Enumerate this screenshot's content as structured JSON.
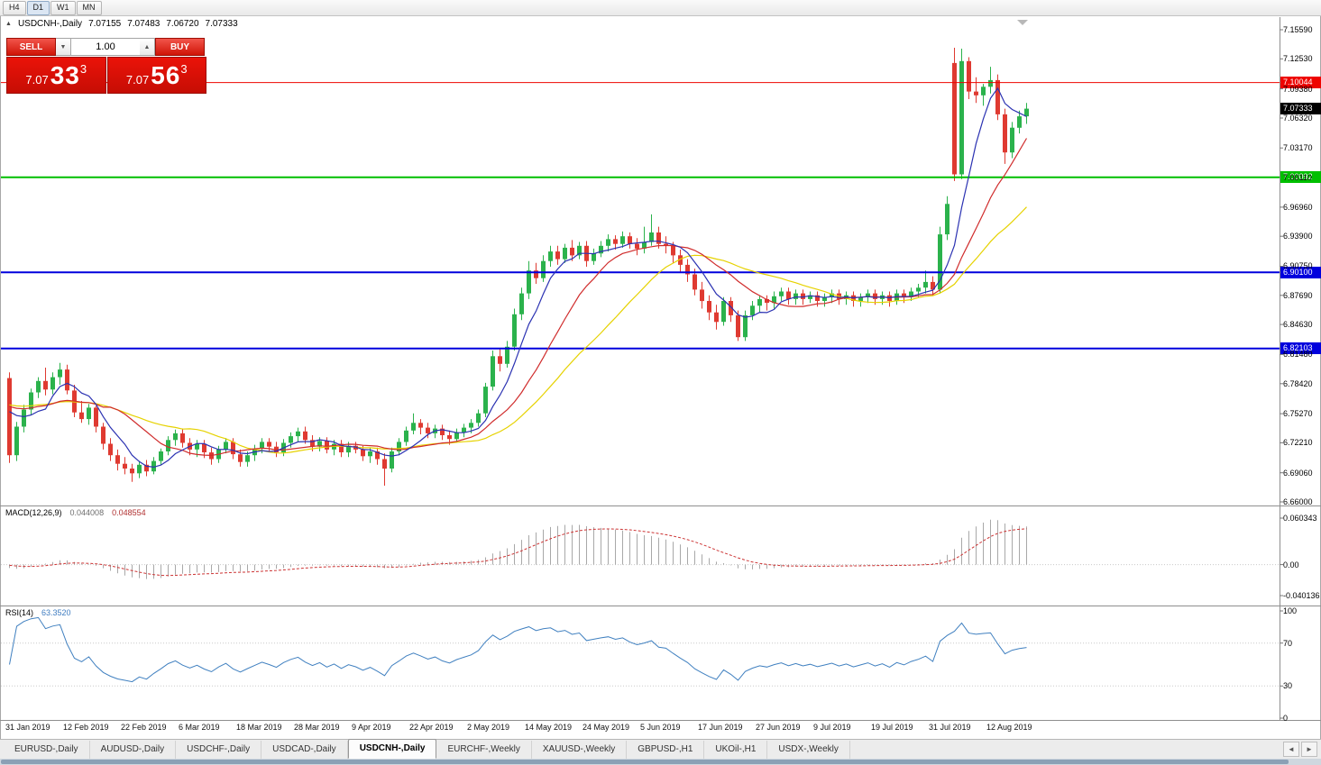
{
  "toolbar": {
    "timeframes": [
      "H4",
      "D1",
      "W1",
      "MN"
    ],
    "active": "D1"
  },
  "icons": {
    "collapse": "▲",
    "spin_up": "▲",
    "spin_down": "▼",
    "scroll_left": "◄",
    "scroll_right": "►"
  },
  "chart_header": {
    "symbol": "USDCNH-,Daily",
    "open": "7.07155",
    "high": "7.07483",
    "low": "7.06720",
    "close": "7.07333"
  },
  "trade_panel": {
    "sell_label": "SELL",
    "buy_label": "BUY",
    "volume": "1.00",
    "bid": {
      "prefix": "7.07",
      "big": "33",
      "sup": "3"
    },
    "ask": {
      "prefix": "7.07",
      "big": "56",
      "sup": "3"
    }
  },
  "price_scale": {
    "labels": [
      "7.15590",
      "7.12530",
      "7.09380",
      "7.06320",
      "7.03170",
      "7.00110",
      "6.96960",
      "6.93900",
      "6.90750",
      "6.87690",
      "6.84630",
      "6.81480",
      "6.78420",
      "6.75270",
      "6.72210",
      "6.69060",
      "6.66000"
    ]
  },
  "levels": [
    {
      "price": "7.10044",
      "color": "#ee0400",
      "width": 1
    },
    {
      "price": "7.00092",
      "color": "#00bf00",
      "width": 2
    },
    {
      "price": "6.90100",
      "color": "#0000dd",
      "width": 2
    },
    {
      "price": "6.82103",
      "color": "#0000dd",
      "width": 2
    }
  ],
  "current_price": {
    "value": "7.07333",
    "bg": "#000000"
  },
  "macd_panel": {
    "label": "MACD(12,26,9)",
    "value_main": "0.044008",
    "value_signal": "0.048554",
    "axis": [
      "0.060343",
      "0.00",
      "-0.040136"
    ]
  },
  "rsi_panel": {
    "label": "RSI(14)",
    "value": "63.3520",
    "axis": [
      "100",
      "70",
      "30",
      "0"
    ]
  },
  "x_axis": {
    "labels": [
      "31 Jan 2019",
      "12 Feb 2019",
      "22 Feb 2019",
      "6 Mar 2019",
      "18 Mar 2019",
      "28 Mar 2019",
      "9 Apr 2019",
      "22 Apr 2019",
      "2 May 2019",
      "14 May 2019",
      "24 May 2019",
      "5 Jun 2019",
      "17 Jun 2019",
      "27 Jun 2019",
      "9 Jul 2019",
      "19 Jul 2019",
      "31 Jul 2019",
      "12 Aug 2019"
    ],
    "label_every_candles": 8
  },
  "tabs": {
    "items": [
      {
        "label": "EURUSD-,Daily",
        "active": false
      },
      {
        "label": "AUDUSD-,Daily",
        "active": false
      },
      {
        "label": "USDCHF-,Daily",
        "active": false
      },
      {
        "label": "USDCAD-,Daily",
        "active": false
      },
      {
        "label": "USDCNH-,Daily",
        "active": true
      },
      {
        "label": "EURCHF-,Weekly",
        "active": false
      },
      {
        "label": "XAUUSD-,Weekly",
        "active": false
      },
      {
        "label": "GBPUSD-,H1",
        "active": false
      },
      {
        "label": "UKOil-,H1",
        "active": false
      },
      {
        "label": "USDX-,Weekly",
        "active": false
      }
    ]
  },
  "chart_data": {
    "type": "candlestick",
    "symbol": "USDCNH-",
    "timeframe": "Daily",
    "price_axis_range": [
      6.66,
      7.1559
    ],
    "colors": {
      "up": "#2bb24c",
      "down": "#df3a31",
      "ma_fast": "#2b32b2",
      "ma_mid": "#d02c2c",
      "ma_slow": "#e6d200",
      "macd_hist": "#a8a8a8",
      "macd_signal": "#cc3333",
      "rsi": "#4080c0"
    },
    "indicators": {
      "ma_fast": 6,
      "ma_mid": 14,
      "ma_slow": 25,
      "macd": [
        12,
        26,
        9
      ],
      "rsi": 14
    },
    "candles": [
      [
        6.79,
        6.796,
        6.701,
        6.709
      ],
      [
        6.709,
        6.744,
        6.703,
        6.739
      ],
      [
        6.739,
        6.762,
        6.733,
        6.757
      ],
      [
        6.757,
        6.779,
        6.751,
        6.775
      ],
      [
        6.775,
        6.791,
        6.769,
        6.787
      ],
      [
        6.787,
        6.801,
        6.772,
        6.778
      ],
      [
        6.778,
        6.796,
        6.773,
        6.791
      ],
      [
        6.791,
        6.806,
        6.783,
        6.799
      ],
      [
        6.799,
        6.804,
        6.773,
        6.777
      ],
      [
        6.777,
        6.783,
        6.749,
        6.754
      ],
      [
        6.754,
        6.766,
        6.743,
        6.747
      ],
      [
        6.747,
        6.763,
        6.741,
        6.759
      ],
      [
        6.759,
        6.761,
        6.733,
        6.739
      ],
      [
        6.739,
        6.743,
        6.715,
        6.721
      ],
      [
        6.721,
        6.727,
        6.703,
        6.709
      ],
      [
        6.709,
        6.715,
        6.693,
        6.7
      ],
      [
        6.7,
        6.707,
        6.689,
        6.695
      ],
      [
        6.695,
        6.7,
        6.681,
        6.69
      ],
      [
        6.69,
        6.703,
        6.685,
        6.699
      ],
      [
        6.699,
        6.704,
        6.687,
        6.692
      ],
      [
        6.692,
        6.707,
        6.689,
        6.703
      ],
      [
        6.703,
        6.716,
        6.699,
        6.713
      ],
      [
        6.713,
        6.729,
        6.709,
        6.725
      ],
      [
        6.725,
        6.736,
        6.719,
        6.732
      ],
      [
        6.732,
        6.737,
        6.717,
        6.722
      ],
      [
        6.722,
        6.727,
        6.709,
        6.715
      ],
      [
        6.715,
        6.725,
        6.707,
        6.721
      ],
      [
        6.721,
        6.725,
        6.706,
        6.712
      ],
      [
        6.712,
        6.717,
        6.699,
        6.705
      ],
      [
        6.705,
        6.719,
        6.701,
        6.715
      ],
      [
        6.715,
        6.727,
        6.711,
        6.723
      ],
      [
        6.723,
        6.727,
        6.705,
        6.71
      ],
      [
        6.71,
        6.715,
        6.697,
        6.702
      ],
      [
        6.702,
        6.713,
        6.697,
        6.709
      ],
      [
        6.709,
        6.72,
        6.703,
        6.716
      ],
      [
        6.716,
        6.727,
        6.711,
        6.723
      ],
      [
        6.723,
        6.727,
        6.713,
        6.718
      ],
      [
        6.718,
        6.723,
        6.707,
        6.712
      ],
      [
        6.712,
        6.726,
        6.708,
        6.722
      ],
      [
        6.722,
        6.733,
        6.717,
        6.729
      ],
      [
        6.729,
        6.738,
        6.723,
        6.734
      ],
      [
        6.734,
        6.739,
        6.721,
        6.725
      ],
      [
        6.725,
        6.73,
        6.713,
        6.718
      ],
      [
        6.718,
        6.728,
        6.713,
        6.724
      ],
      [
        6.724,
        6.728,
        6.711,
        6.715
      ],
      [
        6.715,
        6.725,
        6.709,
        6.721
      ],
      [
        6.721,
        6.725,
        6.707,
        6.712
      ],
      [
        6.712,
        6.723,
        6.707,
        6.719
      ],
      [
        6.719,
        6.723,
        6.711,
        6.715
      ],
      [
        6.715,
        6.719,
        6.703,
        6.708
      ],
      [
        6.708,
        6.717,
        6.701,
        6.713
      ],
      [
        6.713,
        6.717,
        6.699,
        6.705
      ],
      [
        6.705,
        6.711,
        6.677,
        6.695
      ],
      [
        6.695,
        6.717,
        6.691,
        6.713
      ],
      [
        6.713,
        6.727,
        6.709,
        6.723
      ],
      [
        6.723,
        6.739,
        6.719,
        6.735
      ],
      [
        6.735,
        6.753,
        6.731,
        6.743
      ],
      [
        6.743,
        6.747,
        6.731,
        6.738
      ],
      [
        6.738,
        6.743,
        6.727,
        6.732
      ],
      [
        6.732,
        6.741,
        6.727,
        6.737
      ],
      [
        6.737,
        6.741,
        6.725,
        6.73
      ],
      [
        6.73,
        6.735,
        6.72,
        6.726
      ],
      [
        6.726,
        6.737,
        6.722,
        6.733
      ],
      [
        6.733,
        6.742,
        6.728,
        6.738
      ],
      [
        6.738,
        6.747,
        6.732,
        6.743
      ],
      [
        6.743,
        6.757,
        6.739,
        6.753
      ],
      [
        6.753,
        6.785,
        6.749,
        6.781
      ],
      [
        6.781,
        6.819,
        6.777,
        6.813
      ],
      [
        6.813,
        6.821,
        6.797,
        6.805
      ],
      [
        6.805,
        6.829,
        6.801,
        6.823
      ],
      [
        6.823,
        6.863,
        6.819,
        6.857
      ],
      [
        6.857,
        6.885,
        6.851,
        6.879
      ],
      [
        6.879,
        6.913,
        6.873,
        6.903
      ],
      [
        6.903,
        6.911,
        6.889,
        6.895
      ],
      [
        6.895,
        6.919,
        6.891,
        6.913
      ],
      [
        6.913,
        6.929,
        6.907,
        6.923
      ],
      [
        6.923,
        6.929,
        6.909,
        6.915
      ],
      [
        6.915,
        6.931,
        6.911,
        6.927
      ],
      [
        6.927,
        6.935,
        6.913,
        6.919
      ],
      [
        6.919,
        6.933,
        6.915,
        6.929
      ],
      [
        6.929,
        6.934,
        6.907,
        6.913
      ],
      [
        6.913,
        6.926,
        6.909,
        6.921
      ],
      [
        6.921,
        6.934,
        6.917,
        6.929
      ],
      [
        6.929,
        6.941,
        6.923,
        6.936
      ],
      [
        6.936,
        6.94,
        6.925,
        6.931
      ],
      [
        6.931,
        6.944,
        6.927,
        6.939
      ],
      [
        6.939,
        6.943,
        6.926,
        6.931
      ],
      [
        6.931,
        6.937,
        6.919,
        6.926
      ],
      [
        6.926,
        6.949,
        6.921,
        6.933
      ],
      [
        6.933,
        6.962,
        6.929,
        6.943
      ],
      [
        6.943,
        6.949,
        6.926,
        6.931
      ],
      [
        6.931,
        6.939,
        6.921,
        6.929
      ],
      [
        6.929,
        6.933,
        6.911,
        6.919
      ],
      [
        6.919,
        6.925,
        6.901,
        6.909
      ],
      [
        6.909,
        6.915,
        6.891,
        6.899
      ],
      [
        6.899,
        6.905,
        6.877,
        6.883
      ],
      [
        6.883,
        6.891,
        6.863,
        6.871
      ],
      [
        6.871,
        6.877,
        6.851,
        6.859
      ],
      [
        6.859,
        6.867,
        6.841,
        6.849
      ],
      [
        6.849,
        6.875,
        6.845,
        6.871
      ],
      [
        6.871,
        6.875,
        6.849,
        6.856
      ],
      [
        6.856,
        6.861,
        6.829,
        6.833
      ],
      [
        6.833,
        6.861,
        6.829,
        6.856
      ],
      [
        6.856,
        6.871,
        6.851,
        6.866
      ],
      [
        6.866,
        6.877,
        6.859,
        6.873
      ],
      [
        6.873,
        6.877,
        6.861,
        6.869
      ],
      [
        6.869,
        6.881,
        6.863,
        6.876
      ],
      [
        6.876,
        6.885,
        6.871,
        6.881
      ],
      [
        6.881,
        6.885,
        6.867,
        6.873
      ],
      [
        6.873,
        6.883,
        6.867,
        6.879
      ],
      [
        6.879,
        6.883,
        6.867,
        6.873
      ],
      [
        6.873,
        6.881,
        6.869,
        6.877
      ],
      [
        6.877,
        6.881,
        6.865,
        6.871
      ],
      [
        6.871,
        6.879,
        6.865,
        6.875
      ],
      [
        6.875,
        6.883,
        6.869,
        6.879
      ],
      [
        6.879,
        6.883,
        6.867,
        6.873
      ],
      [
        6.873,
        6.881,
        6.867,
        6.877
      ],
      [
        6.877,
        6.881,
        6.865,
        6.871
      ],
      [
        6.871,
        6.879,
        6.865,
        6.875
      ],
      [
        6.875,
        6.883,
        6.869,
        6.879
      ],
      [
        6.879,
        6.883,
        6.867,
        6.873
      ],
      [
        6.873,
        6.881,
        6.867,
        6.877
      ],
      [
        6.877,
        6.881,
        6.865,
        6.871
      ],
      [
        6.871,
        6.883,
        6.867,
        6.879
      ],
      [
        6.879,
        6.883,
        6.869,
        6.875
      ],
      [
        6.875,
        6.885,
        6.871,
        6.881
      ],
      [
        6.881,
        6.889,
        6.875,
        6.885
      ],
      [
        6.885,
        6.903,
        6.879,
        6.891
      ],
      [
        6.891,
        6.897,
        6.877,
        6.883
      ],
      [
        6.883,
        6.949,
        6.879,
        6.941
      ],
      [
        6.941,
        6.981,
        6.935,
        6.973
      ],
      [
        7.121,
        7.137,
        6.997,
        7.004
      ],
      [
        7.004,
        7.136,
        6.999,
        7.123
      ],
      [
        7.123,
        7.127,
        7.083,
        7.091
      ],
      [
        7.091,
        7.106,
        7.079,
        7.087
      ],
      [
        7.087,
        7.099,
        7.076,
        7.096
      ],
      [
        7.096,
        7.117,
        7.089,
        7.103
      ],
      [
        7.103,
        7.109,
        7.061,
        7.067
      ],
      [
        7.067,
        7.073,
        7.015,
        7.027
      ],
      [
        7.027,
        7.059,
        7.021,
        7.053
      ],
      [
        7.053,
        7.071,
        7.047,
        7.065
      ],
      [
        7.065,
        7.079,
        7.057,
        7.073
      ]
    ],
    "x_labels": [
      "31 Jan 2019",
      "12 Feb 2019",
      "22 Feb 2019",
      "6 Mar 2019",
      "18 Mar 2019",
      "28 Mar 2019",
      "9 Apr 2019",
      "22 Apr 2019",
      "2 May 2019",
      "14 May 2019",
      "24 May 2019",
      "5 Jun 2019",
      "17 Jun 2019",
      "27 Jun 2019",
      "9 Jul 2019",
      "19 Jul 2019",
      "31 Jul 2019",
      "12 Aug 2019"
    ]
  }
}
